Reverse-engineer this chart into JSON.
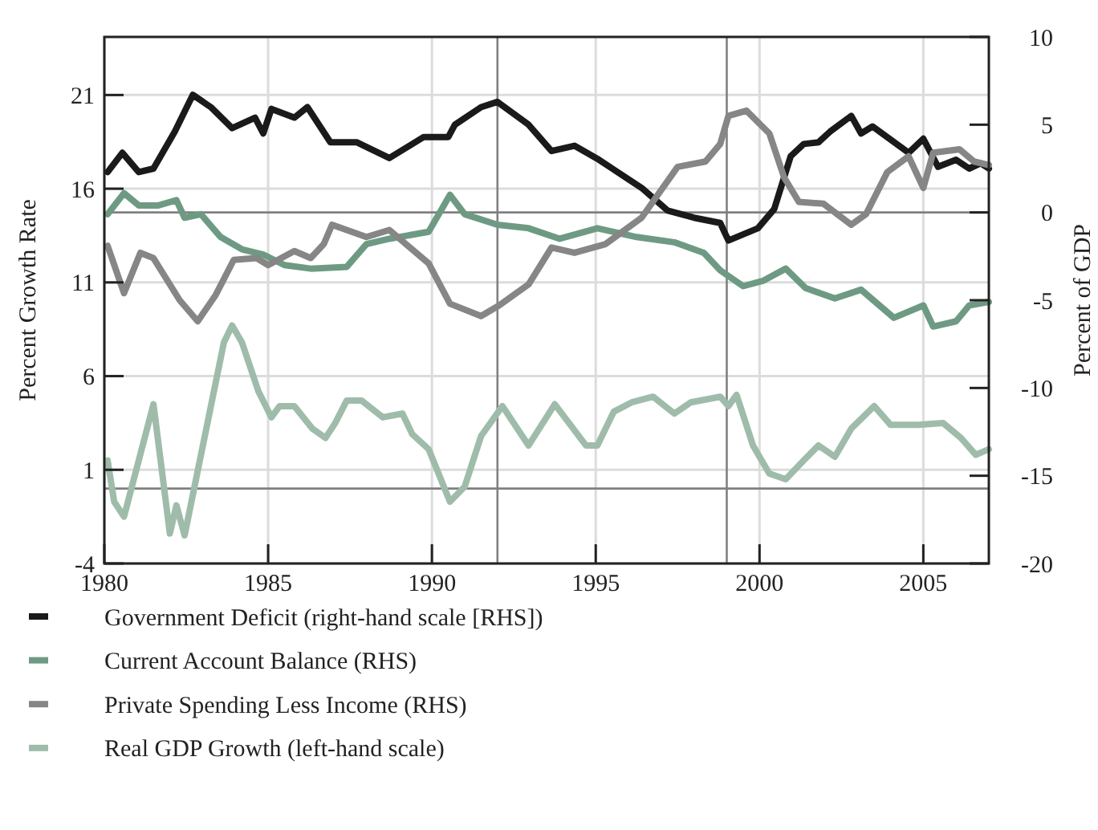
{
  "chart_data": {
    "type": "line",
    "ylabel": "Percent Growth Rate",
    "y2label": "Percent of GDP",
    "xlim": [
      1980,
      2007
    ],
    "xticks": [
      1980,
      1985,
      1990,
      1995,
      2000,
      2005
    ],
    "ylim": [
      -4,
      24.1
    ],
    "yticks": [
      -4,
      1,
      6,
      11,
      16,
      21
    ],
    "y2lim": [
      -20,
      10
    ],
    "y2ticks": [
      -20,
      -15,
      -10,
      -5,
      0,
      5,
      10
    ],
    "grid": true,
    "legend": "bottom",
    "line_style": "solid",
    "marker": "none",
    "ref_lines": [
      {
        "axis": "y",
        "value": 0,
        "color": "#808080"
      },
      {
        "axis": "y2",
        "value": 0,
        "color": "#808080"
      },
      {
        "axis": "x",
        "value": 1992,
        "color": "#808080"
      },
      {
        "axis": "x",
        "value": 1999,
        "color": "#808080"
      }
    ],
    "series": [
      {
        "name": "Government Deficit (right-hand scale [RHS])",
        "color": "#1a1a1a",
        "axis": "y2",
        "x": [
          1980.1,
          1980.55,
          1981.05,
          1981.5,
          1982.15,
          1982.7,
          1983.25,
          1983.9,
          1984.6,
          1984.85,
          1985.1,
          1985.8,
          1986.2,
          1986.9,
          1987.7,
          1988.7,
          1989.75,
          1990.5,
          1990.7,
          1991.5,
          1992.0,
          1992.95,
          1993.65,
          1994.35,
          1995.1,
          1996.4,
          1997.2,
          1998.0,
          1998.8,
          1999.05,
          1999.95,
          2000.45,
          2000.95,
          2001.35,
          2001.8,
          2002.15,
          2002.8,
          2003.1,
          2003.45,
          2004.55,
          2005.0,
          2005.45,
          2006.0,
          2006.4,
          2006.75,
          2007.0
        ],
        "values": [
          2.3,
          3.4,
          2.3,
          2.5,
          4.6,
          6.7,
          6.0,
          4.8,
          5.4,
          4.5,
          5.9,
          5.4,
          6.0,
          4.0,
          4.0,
          3.1,
          4.3,
          4.3,
          5.0,
          6.0,
          6.3,
          5.0,
          3.5,
          3.8,
          3.0,
          1.4,
          0.1,
          -0.3,
          -0.6,
          -1.6,
          -0.9,
          0.2,
          3.2,
          3.9,
          4.0,
          4.6,
          5.5,
          4.5,
          4.9,
          3.4,
          4.2,
          2.6,
          3.0,
          2.5,
          2.8,
          2.5
        ]
      },
      {
        "name": "Current Account Balance (RHS)",
        "color": "#6e9a84",
        "axis": "y2",
        "x": [
          1980.1,
          1980.6,
          1981.05,
          1981.65,
          1982.2,
          1982.45,
          1982.95,
          1983.55,
          1984.2,
          1984.85,
          1985.5,
          1986.3,
          1987.4,
          1988.0,
          1988.7,
          1989.9,
          1990.55,
          1991.0,
          1992.0,
          1992.95,
          1993.9,
          1995.05,
          1996.25,
          1997.4,
          1998.3,
          1998.8,
          1999.5,
          2000.1,
          2000.8,
          2001.4,
          2002.3,
          2003.1,
          2004.1,
          2005.0,
          2005.3,
          2006.0,
          2006.4,
          2007.0
        ],
        "values": [
          -0.1,
          1.1,
          0.4,
          0.4,
          0.7,
          -0.3,
          -0.1,
          -1.4,
          -2.1,
          -2.4,
          -3.0,
          -3.2,
          -3.1,
          -1.8,
          -1.5,
          -1.1,
          1.0,
          -0.1,
          -0.7,
          -0.9,
          -1.5,
          -0.9,
          -1.4,
          -1.7,
          -2.3,
          -3.3,
          -4.2,
          -3.9,
          -3.2,
          -4.3,
          -4.9,
          -4.4,
          -6.0,
          -5.3,
          -6.5,
          -6.2,
          -5.3,
          -5.1
        ]
      },
      {
        "name": "Private Spending Less Income (RHS)",
        "color": "#868686",
        "axis": "y2",
        "x": [
          1980.1,
          1980.6,
          1981.1,
          1981.5,
          1982.3,
          1982.85,
          1983.4,
          1983.95,
          1984.65,
          1985.0,
          1985.8,
          1986.3,
          1986.7,
          1986.95,
          1988.0,
          1988.7,
          1989.9,
          1990.55,
          1991.5,
          1992.05,
          1992.95,
          1993.65,
          1994.35,
          1995.3,
          1996.4,
          1997.5,
          1998.35,
          1998.8,
          1999.05,
          1999.6,
          2000.3,
          2000.75,
          2001.2,
          2001.95,
          2002.8,
          2003.25,
          2003.9,
          2004.55,
          2005.0,
          2005.3,
          2006.1,
          2006.55,
          2007.0
        ],
        "values": [
          -1.9,
          -4.6,
          -2.3,
          -2.6,
          -5.0,
          -6.2,
          -4.7,
          -2.7,
          -2.6,
          -3.0,
          -2.2,
          -2.6,
          -1.8,
          -0.7,
          -1.4,
          -1.0,
          -2.9,
          -5.2,
          -5.9,
          -5.3,
          -4.1,
          -2.0,
          -2.3,
          -1.8,
          -0.3,
          2.6,
          2.9,
          3.9,
          5.5,
          5.8,
          4.5,
          2.0,
          0.6,
          0.5,
          -0.7,
          -0.1,
          2.3,
          3.2,
          1.4,
          3.4,
          3.6,
          2.9,
          2.7
        ]
      },
      {
        "name": "Real GDP Growth (left-hand scale)",
        "color": "#9fbcab",
        "axis": "y",
        "x": [
          1980.1,
          1980.3,
          1980.6,
          1981.5,
          1982.0,
          1982.2,
          1982.45,
          1982.95,
          1983.65,
          1983.9,
          1984.2,
          1984.7,
          1985.1,
          1985.35,
          1985.8,
          1986.35,
          1986.75,
          1987.05,
          1987.4,
          1987.85,
          1988.5,
          1989.1,
          1989.4,
          1989.9,
          1990.55,
          1991.0,
          1991.5,
          1992.15,
          1992.95,
          1993.75,
          1994.7,
          1995.05,
          1995.55,
          1996.1,
          1996.75,
          1997.4,
          1997.9,
          1998.8,
          1999.05,
          1999.3,
          1999.8,
          2000.3,
          2000.8,
          2001.35,
          2001.8,
          2002.3,
          2002.8,
          2003.5,
          2004.0,
          2004.85,
          2005.6,
          2006.15,
          2006.6,
          2007.0
        ],
        "values": [
          1.5,
          -0.7,
          -1.5,
          4.5,
          -2.4,
          -0.9,
          -2.5,
          1.8,
          7.8,
          8.7,
          7.8,
          5.2,
          3.8,
          4.4,
          4.4,
          3.2,
          2.7,
          3.5,
          4.7,
          4.7,
          3.8,
          4.0,
          2.9,
          2.1,
          -0.7,
          0.1,
          2.8,
          4.4,
          2.3,
          4.5,
          2.3,
          2.3,
          4.1,
          4.6,
          4.9,
          4.0,
          4.6,
          4.9,
          4.4,
          5.0,
          2.3,
          0.8,
          0.5,
          1.5,
          2.3,
          1.7,
          3.2,
          4.4,
          3.4,
          3.4,
          3.5,
          2.7,
          1.8,
          2.1
        ]
      }
    ]
  }
}
